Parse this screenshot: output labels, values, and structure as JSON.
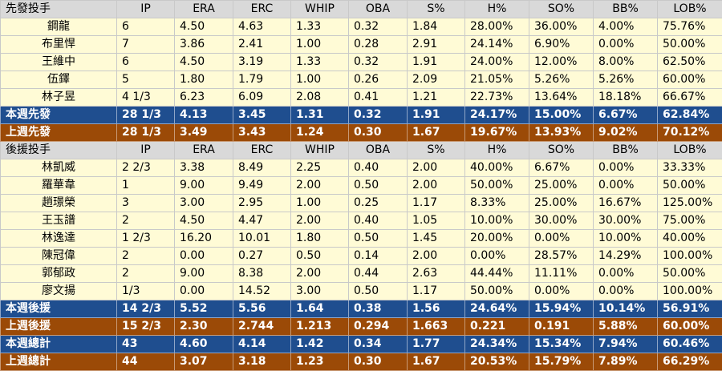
{
  "columns": [
    "IP",
    "ERA",
    "ERC",
    "WHIP",
    "OBA",
    "S%",
    "H%",
    "SO%",
    "BB%",
    "LOB%"
  ],
  "starters": {
    "header": "先發投手",
    "rows": [
      {
        "name": "鋼龍",
        "cells": [
          "6",
          "4.50",
          "4.63",
          "1.33",
          "0.32",
          "1.84",
          "28.00%",
          "36.00%",
          "4.00%",
          "75.76%"
        ]
      },
      {
        "name": "布里悍",
        "cells": [
          "7",
          "3.86",
          "2.41",
          "1.00",
          "0.28",
          "2.91",
          "24.14%",
          "6.90%",
          "0.00%",
          "50.00%"
        ]
      },
      {
        "name": "王維中",
        "cells": [
          "6",
          "4.50",
          "3.19",
          "1.33",
          "0.32",
          "1.91",
          "24.00%",
          "12.00%",
          "8.00%",
          "62.50%"
        ]
      },
      {
        "name": "伍鐸",
        "cells": [
          "5",
          "1.80",
          "1.79",
          "1.00",
          "0.26",
          "2.09",
          "21.05%",
          "5.26%",
          "5.26%",
          "60.00%"
        ]
      },
      {
        "name": "林子昱",
        "cells": [
          "4 1/3",
          "6.23",
          "6.09",
          "2.08",
          "0.41",
          "1.21",
          "22.73%",
          "13.64%",
          "18.18%",
          "66.67%"
        ]
      }
    ],
    "this_week": {
      "label": "本週先發",
      "cells": [
        "28 1/3",
        "4.13",
        "3.45",
        "1.31",
        "0.32",
        "1.91",
        "24.17%",
        "15.00%",
        "6.67%",
        "62.84%"
      ]
    },
    "last_week": {
      "label": "上週先發",
      "cells": [
        "28 1/3",
        "3.49",
        "3.43",
        "1.24",
        "0.30",
        "1.67",
        "19.67%",
        "13.93%",
        "9.02%",
        "70.12%"
      ]
    }
  },
  "relievers": {
    "header": "後援投手",
    "rows": [
      {
        "name": "林凱威",
        "cells": [
          "2 2/3",
          "3.38",
          "8.49",
          "2.25",
          "0.40",
          "2.00",
          "40.00%",
          "6.67%",
          "0.00%",
          "33.33%"
        ]
      },
      {
        "name": "羅華韋",
        "cells": [
          "1",
          "9.00",
          "9.49",
          "2.00",
          "0.50",
          "2.00",
          "50.00%",
          "25.00%",
          "0.00%",
          "50.00%"
        ]
      },
      {
        "name": "趙璟榮",
        "cells": [
          "3",
          "3.00",
          "2.95",
          "1.00",
          "0.25",
          "1.17",
          "8.33%",
          "25.00%",
          "16.67%",
          "125.00%"
        ]
      },
      {
        "name": "王玉譜",
        "cells": [
          "2",
          "4.50",
          "4.47",
          "2.00",
          "0.40",
          "1.05",
          "10.00%",
          "30.00%",
          "30.00%",
          "75.00%"
        ]
      },
      {
        "name": "林逸達",
        "cells": [
          "1 2/3",
          "16.20",
          "10.01",
          "1.80",
          "0.50",
          "1.45",
          "20.00%",
          "0.00%",
          "10.00%",
          "40.00%"
        ]
      },
      {
        "name": "陳冠偉",
        "cells": [
          "2",
          "0.00",
          "0.27",
          "0.50",
          "0.14",
          "2.00",
          "0.00%",
          "28.57%",
          "14.29%",
          "100.00%"
        ]
      },
      {
        "name": "郭郁政",
        "cells": [
          "2",
          "9.00",
          "8.38",
          "2.00",
          "0.44",
          "2.63",
          "44.44%",
          "11.11%",
          "0.00%",
          "50.00%"
        ]
      },
      {
        "name": "廖文揚",
        "cells": [
          "1/3",
          "0.00",
          "14.52",
          "3.00",
          "0.50",
          "1.17",
          "50.00%",
          "0.00%",
          "0.00%",
          "100.00%"
        ]
      }
    ],
    "this_week": {
      "label": "本週後援",
      "cells": [
        "14 2/3",
        "5.52",
        "5.56",
        "1.64",
        "0.38",
        "1.56",
        "24.64%",
        "15.94%",
        "10.14%",
        "56.91%"
      ]
    },
    "last_week": {
      "label": "上週後援",
      "cells": [
        "15 2/3",
        "2.30",
        "2.744",
        "1.213",
        "0.294",
        "1.663",
        "0.221",
        "0.191",
        "5.88%",
        "60.00%"
      ]
    }
  },
  "totals": {
    "this_week": {
      "label": "本週總計",
      "cells": [
        "43",
        "4.60",
        "4.14",
        "1.42",
        "0.34",
        "1.77",
        "24.34%",
        "15.34%",
        "7.94%",
        "60.46%"
      ]
    },
    "last_week": {
      "label": "上週總計",
      "cells": [
        "44",
        "3.07",
        "3.18",
        "1.23",
        "0.30",
        "1.67",
        "20.53%",
        "15.79%",
        "7.89%",
        "66.29%"
      ]
    }
  },
  "colors": {
    "header_bg": "#d9d9d9",
    "row_bg": "#fffbd6",
    "this_week_bg": "#1f4e8f",
    "last_week_bg": "#9b4a07"
  }
}
